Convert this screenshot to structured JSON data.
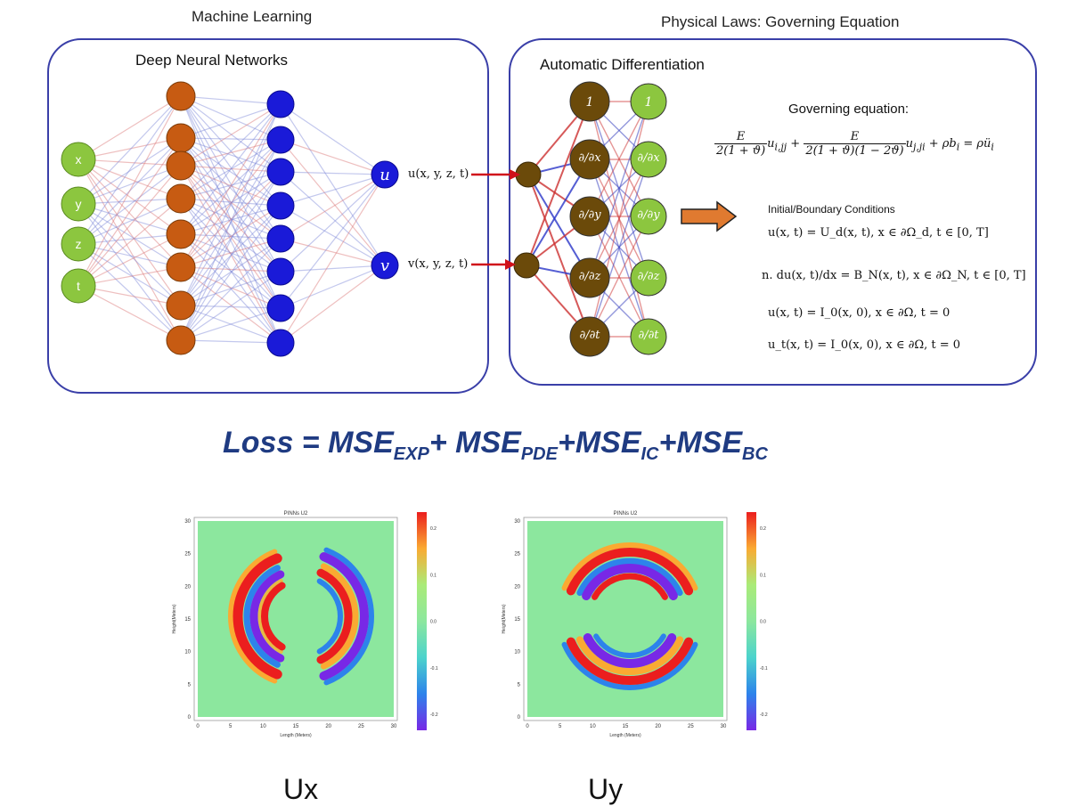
{
  "headers": {
    "machine_learning": "Machine Learning",
    "physical_laws": "Physical Laws: Governing Equation"
  },
  "left_panel": {
    "title": "Deep Neural Networks",
    "inputs": [
      "x",
      "y",
      "z",
      "t"
    ],
    "outputs": [
      {
        "symbol": "u",
        "label": "u(x, y, z, t)"
      },
      {
        "symbol": "v",
        "label": "v(x, y, z, t)"
      }
    ]
  },
  "right_panel": {
    "title": "Automatic Differentiation",
    "operator_nodes": [
      "1",
      "∂/∂x",
      "∂/∂y",
      "∂/∂z",
      "∂/∂t"
    ],
    "governing_title": "Governing equation:",
    "conditions_title": "Initial/Boundary Conditions",
    "conditions": [
      "u(x, t) = U_d(x, t), x ∈ ∂Ω_d, t ∈ [0, T]",
      "n. du(x, t)/dx = B_N(x, t), x ∈ ∂Ω_N, t ∈ [0, T]",
      "u(x, t) = I_0(x, 0), x ∈ ∂Ω, t = 0",
      "u_t(x, t) = I_0(x, 0), x ∈ ∂Ω, t = 0"
    ]
  },
  "loss": {
    "prefix": "Loss = ",
    "terms": [
      {
        "base": "MSE",
        "sub": "EXP"
      },
      {
        "base": "MSE",
        "sub": "PDE"
      },
      {
        "base": "MSE",
        "sub": "IC"
      },
      {
        "base": "MSE",
        "sub": "BC"
      }
    ]
  },
  "plots": [
    {
      "title": "PINNs U2",
      "xlabel": "Length (Meters)",
      "ylabel": "Height(Meters)",
      "caption": "Ux",
      "xticks": [
        "0",
        "5",
        "10",
        "15",
        "20",
        "25",
        "30"
      ],
      "yticks": [
        "30",
        "25",
        "20",
        "15",
        "10",
        "5",
        "0"
      ],
      "cbar_ticks": [
        "0.2",
        "0.1",
        "0.0",
        "-0.1",
        "-0.2"
      ],
      "pattern": "vertical"
    },
    {
      "title": "PINNs U2",
      "xlabel": "Length (Meters)",
      "ylabel": "Height(Meters)",
      "caption": "Uy",
      "xticks": [
        "0",
        "5",
        "10",
        "15",
        "20",
        "25",
        "30"
      ],
      "yticks": [
        "30",
        "25",
        "20",
        "15",
        "10",
        "5",
        "0"
      ],
      "cbar_ticks": [
        "0.2",
        "0.1",
        "0.0",
        "-0.1",
        "-0.2"
      ],
      "pattern": "horizontal"
    }
  ],
  "colors": {
    "box_border": "#3a3fa8",
    "input_node": "#8cc63f",
    "hidden1_node": "#c75b12",
    "hidden2_node": "#1a1ad8",
    "ad_node": "#6b4a0a",
    "red_arrow": "#d0101a",
    "orange_arrow": "#e07a30",
    "loss_text": "#1f3b82"
  }
}
